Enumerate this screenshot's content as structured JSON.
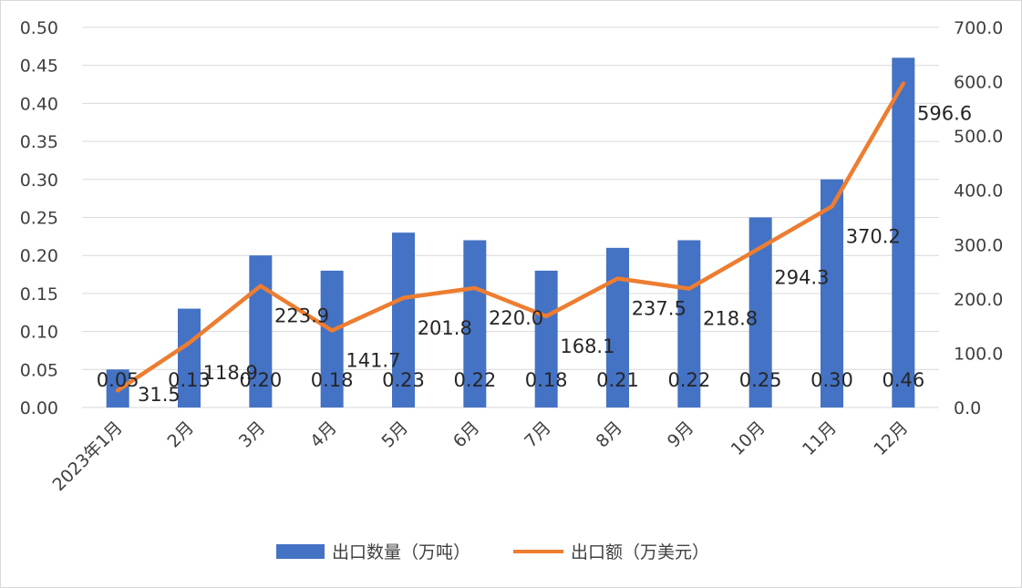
{
  "chart_data": {
    "type": "bar+line",
    "title": "",
    "categories": [
      "2023年1月",
      "2月",
      "3月",
      "4月",
      "5月",
      "6月",
      "7月",
      "8月",
      "9月",
      "10月",
      "11月",
      "12月"
    ],
    "series": [
      {
        "name": "出口数量（万吨）",
        "type": "bar",
        "axis": "left",
        "color": "#4472C4",
        "values": [
          0.05,
          0.13,
          0.2,
          0.18,
          0.23,
          0.22,
          0.18,
          0.21,
          0.22,
          0.25,
          0.3,
          0.46
        ],
        "labels": [
          "0.05",
          "0.13",
          "0.20",
          "0.18",
          "0.23",
          "0.22",
          "0.18",
          "0.21",
          "0.22",
          "0.25",
          "0.30",
          "0.46"
        ]
      },
      {
        "name": "出口额（万美元）",
        "type": "line",
        "axis": "right",
        "color": "#ED7D31",
        "values": [
          31.5,
          118.9,
          223.9,
          141.7,
          201.8,
          220.0,
          168.1,
          237.5,
          218.8,
          294.3,
          370.2,
          596.6
        ],
        "labels": [
          "31.5",
          "118.9",
          "223.9",
          "141.7",
          "201.8",
          "220.0",
          "168.1",
          "237.5",
          "218.8",
          "294.3",
          "370.2",
          "596.6"
        ]
      }
    ],
    "y_left": {
      "min": 0,
      "max": 0.5,
      "ticks": [
        "0.00",
        "0.05",
        "0.10",
        "0.15",
        "0.20",
        "0.25",
        "0.30",
        "0.35",
        "0.40",
        "0.45",
        "0.50"
      ]
    },
    "y_right": {
      "min": 0,
      "max": 700,
      "ticks": [
        "0.0",
        "100.0",
        "200.0",
        "300.0",
        "400.0",
        "500.0",
        "600.0",
        "700.0"
      ]
    },
    "grid": true,
    "legend_position": "bottom",
    "gridline_color": "#d9d9d9"
  }
}
